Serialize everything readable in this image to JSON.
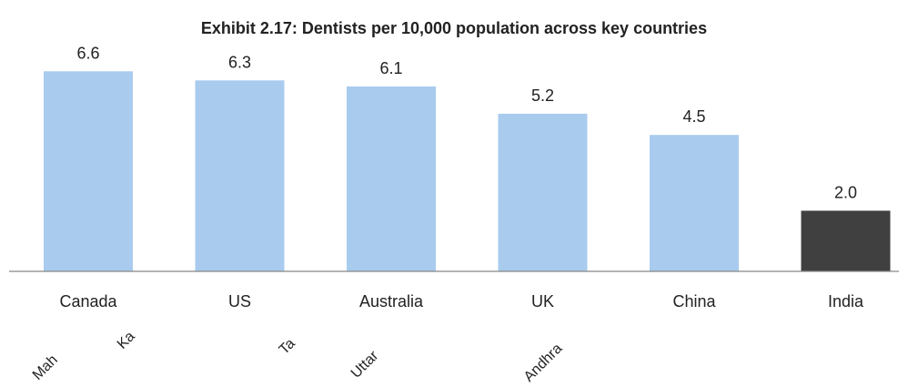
{
  "chart_data": {
    "type": "bar",
    "title": "Exhibit 2.17: Dentists per 10,000 population across key countries",
    "categories": [
      "Canada",
      "US",
      "Australia",
      "UK",
      "China",
      "India"
    ],
    "values": [
      6.6,
      6.3,
      6.1,
      5.2,
      4.5,
      2.0
    ],
    "data_labels": [
      "6.6",
      "6.3",
      "6.1",
      "5.2",
      "4.5",
      "2.0"
    ],
    "xlabel": "",
    "ylabel": "",
    "ylim": [
      0,
      7.3
    ],
    "grid": false,
    "legend": "none",
    "colors": {
      "default_bar": "#a9cbee",
      "highlight_bar": "#404040",
      "axis": "#888888"
    },
    "highlight_category": "India"
  },
  "fragments": [
    "Mah",
    "Ka",
    "Ta",
    "Uttar",
    "Andhra"
  ]
}
